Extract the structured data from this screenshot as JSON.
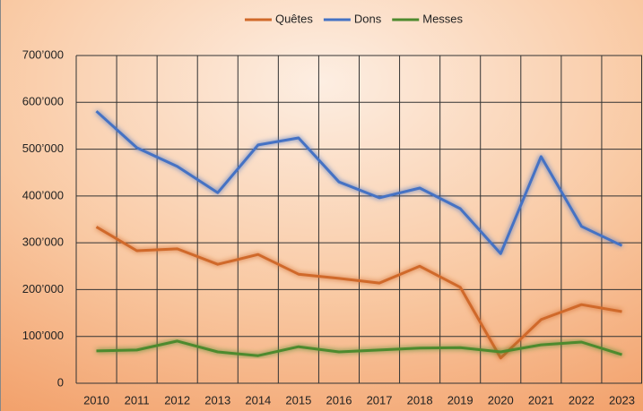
{
  "chart_data": {
    "type": "line",
    "categories": [
      "2010",
      "2011",
      "2012",
      "2013",
      "2014",
      "2015",
      "2016",
      "2017",
      "2018",
      "2019",
      "2020",
      "2021",
      "2022",
      "2023"
    ],
    "series": [
      {
        "name": "Quêtes",
        "color": "#d0692a",
        "values": [
          334000,
          283000,
          287000,
          254000,
          275000,
          233000,
          224000,
          214000,
          250000,
          205000,
          54000,
          136000,
          168000,
          153000
        ]
      },
      {
        "name": "Dons",
        "color": "#4472c4",
        "values": [
          581000,
          503000,
          463000,
          407000,
          509000,
          524000,
          430000,
          396000,
          417000,
          373000,
          277000,
          484000,
          335000,
          294000
        ]
      },
      {
        "name": "Messes",
        "color": "#4e8a2e",
        "values": [
          69000,
          71000,
          90000,
          67000,
          59000,
          78000,
          67000,
          71000,
          75000,
          76000,
          67000,
          82000,
          88000,
          61000
        ]
      }
    ],
    "ylim": [
      0,
      700000
    ],
    "yticks": [
      0,
      {
        "value": 100000,
        "label": "100’000"
      },
      {
        "value": 200000,
        "label": "200’000"
      },
      {
        "value": 300000,
        "label": "300’000"
      },
      {
        "value": 400000,
        "label": "400’000"
      },
      {
        "value": 500000,
        "label": "500’000"
      },
      {
        "value": 600000,
        "label": "600’000"
      },
      {
        "value": 700000,
        "label": "700’000"
      }
    ],
    "grid": true,
    "legend": "top"
  }
}
